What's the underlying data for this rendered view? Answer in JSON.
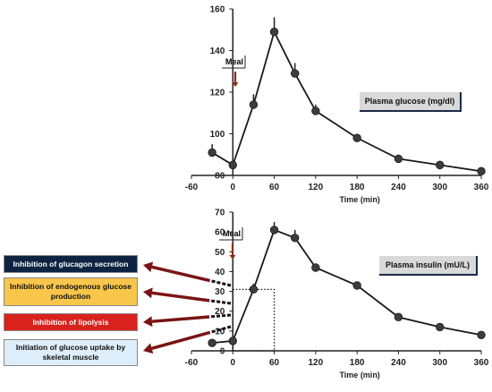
{
  "colors": {
    "line": "#1a1a1a",
    "marker": "#3d3d3d",
    "arrow": "#7a1414",
    "meal_arrow": "#8b2a1a",
    "box_glucagon": "#0d2341",
    "box_endogenous": "#f7c64a",
    "box_lipolysis": "#d9221c",
    "box_uptake": "#ddeefa",
    "legend_bg": "#d9d9d9"
  },
  "chart_data": [
    {
      "type": "line",
      "legend": "Plasma glucose (mg/dl)",
      "annotation": "Meal",
      "xlabel": "Time (min)",
      "ylabel": "",
      "xlim": [
        -60,
        360
      ],
      "ylim": [
        80,
        160
      ],
      "xticks": [
        -60,
        0,
        60,
        120,
        180,
        240,
        300,
        360
      ],
      "yticks": [
        80,
        100,
        120,
        140,
        160
      ],
      "grid": false,
      "series": [
        {
          "x": [
            -30,
            0,
            30,
            60,
            90,
            120,
            180,
            240,
            300,
            360
          ],
          "y": [
            91,
            85,
            114,
            149,
            129,
            111,
            98,
            88,
            85,
            82
          ],
          "err": [
            4,
            1,
            5,
            7,
            5,
            3,
            2,
            2,
            2,
            1
          ]
        }
      ]
    },
    {
      "type": "line",
      "legend": "Plasma insulin (mU/L)",
      "annotation": "Meal",
      "xlabel": "Time (min)",
      "ylabel": "",
      "xlim": [
        -60,
        360
      ],
      "ylim": [
        0,
        70
      ],
      "xticks": [
        -60,
        0,
        60,
        120,
        180,
        240,
        300,
        360
      ],
      "yticks": [
        0,
        10,
        20,
        30,
        40,
        50,
        60,
        70
      ],
      "grid": false,
      "highlight_region": {
        "x": [
          0,
          60
        ],
        "y": [
          0,
          31
        ]
      },
      "series": [
        {
          "x": [
            -30,
            0,
            30,
            60,
            90,
            120,
            180,
            240,
            300,
            360
          ],
          "y": [
            4,
            5,
            31,
            61,
            57,
            42,
            33,
            17,
            12,
            8
          ],
          "err": [
            0,
            1,
            3,
            4,
            4,
            2,
            2,
            2,
            1,
            1
          ]
        }
      ]
    }
  ],
  "effects": [
    {
      "label": "Inhibition of glucagon secretion"
    },
    {
      "label": "Inhibition of endogenous glucose production"
    },
    {
      "label": "Inhibition of lipolysis"
    },
    {
      "label": "Initiation of glucose uptake by skeletal muscle"
    }
  ]
}
